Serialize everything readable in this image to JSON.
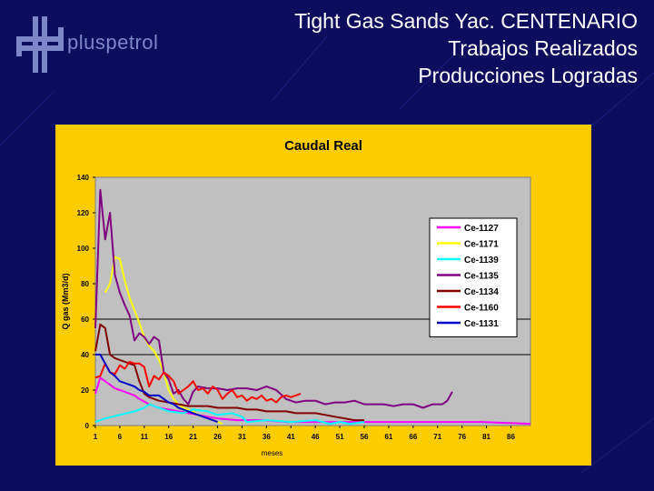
{
  "slide": {
    "logo_text": "pluspetrol",
    "title_lines": [
      "Tight Gas Sands Yac. CENTENARIO",
      "Trabajos Realizados",
      "Producciones Logradas"
    ],
    "colors": {
      "background": "#0d0d5e",
      "panel": "#ffcc00",
      "plot_area": "#c0c0c0",
      "logo": "#7c86c8"
    }
  },
  "chart_data": {
    "type": "line",
    "title": "Caudal Real",
    "xlabel": "meses",
    "ylabel": "Q gas (Mm3/d)",
    "ylim": [
      0,
      140
    ],
    "xlim": [
      1,
      90
    ],
    "yticks": [
      0,
      20,
      40,
      60,
      80,
      100,
      120,
      140
    ],
    "xticks": [
      1,
      6,
      11,
      16,
      21,
      26,
      31,
      36,
      41,
      46,
      51,
      56,
      61,
      66,
      71,
      76,
      81,
      86
    ],
    "grid_y_lines": [
      40,
      60
    ],
    "legend_position": "top-right",
    "series": [
      {
        "name": "Ce-1127",
        "color": "#ff00ff",
        "x": [
          1,
          2,
          3,
          4,
          5,
          6,
          7,
          8,
          9,
          10,
          12,
          14,
          16,
          18,
          20,
          22,
          24,
          26,
          30,
          35,
          40,
          45,
          50,
          55,
          60,
          65,
          70,
          75,
          80,
          85,
          90
        ],
        "y": [
          18,
          27,
          25,
          23,
          21,
          20,
          19,
          18,
          17,
          15,
          12,
          10,
          9,
          8,
          7,
          6,
          5,
          4,
          3,
          3,
          2,
          2,
          2,
          2,
          2,
          2,
          2,
          2,
          2,
          1.5,
          1
        ]
      },
      {
        "name": "Ce-1171",
        "color": "#ffff00",
        "x": [
          3,
          4,
          5,
          6,
          7,
          8,
          9,
          10,
          11,
          12,
          13,
          14,
          15,
          16,
          17,
          18,
          19,
          20,
          21,
          22,
          23,
          24,
          25,
          26,
          27
        ],
        "y": [
          75,
          80,
          95,
          94,
          82,
          72,
          65,
          58,
          50,
          45,
          42,
          37,
          30,
          20,
          15,
          12,
          10,
          9,
          8,
          6,
          5,
          4,
          3,
          2,
          1
        ]
      },
      {
        "name": "Ce-1139",
        "color": "#00ffff",
        "x": [
          1,
          3,
          6,
          9,
          11,
          12,
          14,
          16,
          19,
          21,
          24,
          26,
          29,
          31,
          32,
          36,
          41,
          46,
          49,
          51,
          53,
          56
        ],
        "y": [
          2,
          4,
          6,
          8,
          10,
          12,
          10,
          8,
          7,
          9,
          8,
          6,
          7,
          5,
          2,
          3,
          2,
          3,
          1,
          2,
          1,
          2
        ]
      },
      {
        "name": "Ce-1135",
        "color": "#800080",
        "x": [
          1,
          2,
          3,
          4,
          5,
          6,
          7,
          8,
          9,
          10,
          11,
          12,
          13,
          14,
          15,
          16,
          17,
          18,
          19,
          20,
          21,
          22,
          24,
          26,
          28,
          30,
          32,
          34,
          36,
          38,
          40,
          42,
          44,
          46,
          48,
          50,
          52,
          54,
          56,
          58,
          60,
          62,
          64,
          66,
          68,
          70,
          72,
          73,
          74
        ],
        "y": [
          55,
          133,
          105,
          120,
          85,
          75,
          68,
          62,
          48,
          52,
          50,
          46,
          50,
          48,
          30,
          26,
          18,
          20,
          15,
          12,
          19,
          22,
          21,
          21,
          20,
          21,
          21,
          20,
          22,
          20,
          15,
          13,
          14,
          14,
          12,
          13,
          13,
          14,
          12,
          12,
          12,
          11,
          12,
          12,
          10,
          12,
          12,
          14,
          19
        ]
      },
      {
        "name": "Ce-1134",
        "color": "#800000",
        "x": [
          1,
          2,
          3,
          4,
          5,
          6,
          7,
          8,
          9,
          10,
          11,
          12,
          13,
          14,
          16,
          18,
          20,
          22,
          24,
          26,
          28,
          30,
          32,
          34,
          36,
          38,
          40,
          42,
          44,
          46,
          48,
          50,
          52,
          54,
          56
        ],
        "y": [
          42,
          57,
          55,
          40,
          38,
          37,
          36,
          35,
          34,
          25,
          18,
          16,
          15,
          14,
          13,
          12,
          11,
          11,
          11,
          10,
          10,
          10,
          9,
          9,
          8,
          8,
          8,
          7,
          7,
          7,
          6,
          5,
          4,
          3,
          3
        ]
      },
      {
        "name": "Ce-1160",
        "color": "#ff0000",
        "x": [
          1,
          2,
          3,
          4,
          5,
          6,
          7,
          8,
          9,
          10,
          11,
          12,
          13,
          14,
          15,
          16,
          17,
          18,
          19,
          20,
          21,
          22,
          23,
          24,
          25,
          26,
          27,
          28,
          29,
          30,
          31,
          32,
          33,
          34,
          35,
          36,
          37,
          38,
          39,
          40,
          41,
          42,
          43
        ],
        "y": [
          27,
          28,
          35,
          30,
          29,
          34,
          32,
          36,
          35,
          35,
          33,
          22,
          28,
          26,
          30,
          28,
          25,
          18,
          20,
          22,
          25,
          20,
          21,
          18,
          22,
          20,
          15,
          18,
          20,
          16,
          17,
          14,
          16,
          15,
          17,
          14,
          15,
          13,
          16,
          17,
          16,
          17,
          18
        ]
      },
      {
        "name": "Ce-1131",
        "color": "#0000c8",
        "x": [
          1,
          2,
          3,
          4,
          5,
          6,
          7,
          8,
          9,
          10,
          11,
          12,
          13,
          14,
          15,
          16,
          17,
          18,
          19,
          20,
          21,
          22,
          23,
          24,
          25,
          26
        ],
        "y": [
          40,
          40,
          35,
          30,
          28,
          25,
          24,
          23,
          22,
          20,
          19,
          17,
          17,
          17,
          15,
          13,
          12,
          10,
          9,
          8,
          7,
          6,
          5,
          4,
          3,
          2
        ]
      }
    ]
  }
}
